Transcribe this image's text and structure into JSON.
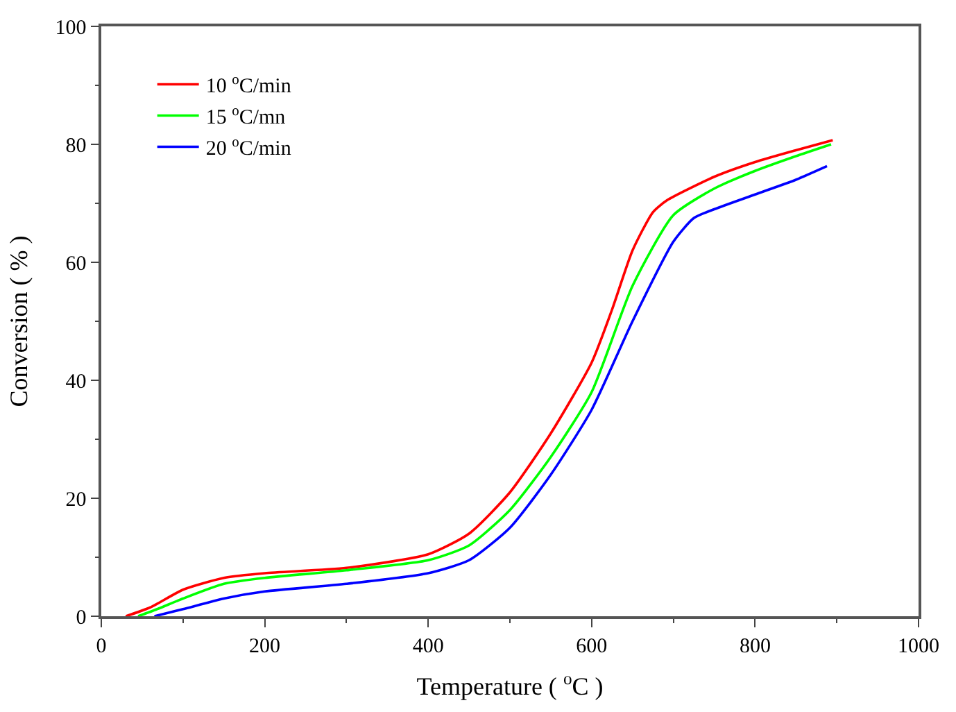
{
  "chart_data": {
    "type": "line",
    "xlabel": "Temperature ( $^{o}$C )",
    "ylabel": "Conversion ( % )",
    "xlim": [
      0,
      1000
    ],
    "xticks": [
      0,
      200,
      400,
      600,
      800,
      1000
    ],
    "ylim": [
      0,
      100
    ],
    "yticks": [
      0,
      20,
      40,
      60,
      80,
      100
    ],
    "grid": false,
    "legend": "top left",
    "marker": "none",
    "line_style": "solid",
    "series": [
      {
        "name": "10 $^{o}$C/min",
        "color": "#ff0000",
        "x": [
          30,
          60,
          100,
          150,
          200,
          300,
          400,
          450,
          500,
          550,
          600,
          625,
          650,
          675,
          692,
          750,
          800,
          850,
          895
        ],
        "values": [
          0,
          1.5,
          4.5,
          6.5,
          7.3,
          8.2,
          10.5,
          14,
          21,
          31,
          43,
          52,
          62,
          68.5,
          70.5,
          74.5,
          77,
          79,
          80.7
        ]
      },
      {
        "name": "15 $^{o}$C/mn",
        "color": "#00ff00",
        "x": [
          45,
          70,
          100,
          150,
          200,
          300,
          400,
          450,
          500,
          550,
          600,
          650,
          700,
          750,
          800,
          850,
          893
        ],
        "values": [
          0,
          1.3,
          3,
          5.5,
          6.5,
          7.8,
          9.5,
          12,
          18,
          27,
          38,
          56,
          68,
          72.5,
          75.5,
          78,
          80
        ]
      },
      {
        "name": "20 $^{o}$C/min",
        "color": "#0000ff",
        "x": [
          65,
          100,
          150,
          200,
          300,
          400,
          450,
          500,
          550,
          600,
          650,
          700,
          725,
          750,
          800,
          850,
          888
        ],
        "values": [
          0,
          1.2,
          3,
          4.2,
          5.5,
          7.3,
          9.5,
          15,
          24,
          35,
          50,
          63.5,
          67.5,
          69,
          71.5,
          74,
          76.3
        ]
      }
    ]
  }
}
